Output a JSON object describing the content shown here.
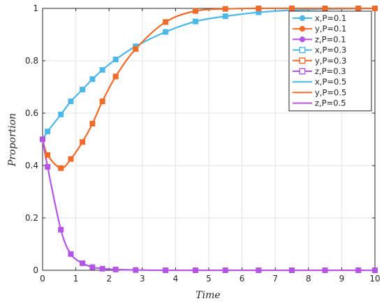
{
  "chart_data": {
    "type": "line",
    "title": "",
    "xlabel": "Time",
    "ylabel": "Proportion",
    "xlim": [
      0,
      10
    ],
    "ylim": [
      0,
      1
    ],
    "x_ticks": [
      "0",
      "1",
      "2",
      "3",
      "4",
      "5",
      "6",
      "7",
      "8",
      "9",
      "10"
    ],
    "y_ticks": [
      "0",
      "0.2",
      "0.4",
      "0.6",
      "0.8",
      "1"
    ],
    "grid": true,
    "legend_position": "top-right",
    "legend": [
      {
        "label": "x,P=0.1",
        "color": "#4db8e8",
        "marker": "circle"
      },
      {
        "label": "y,P=0.1",
        "color": "#f06a2a",
        "marker": "circle"
      },
      {
        "label": "z,P=0.1",
        "color": "#b455e6",
        "marker": "circle"
      },
      {
        "label": "x,P=0.3",
        "color": "#4db8e8",
        "marker": "square-open"
      },
      {
        "label": "y,P=0.3",
        "color": "#f06a2a",
        "marker": "square-open"
      },
      {
        "label": "z,P=0.3",
        "color": "#b455e6",
        "marker": "square-open"
      },
      {
        "label": "x,P=0.5",
        "color": "#4db8e8",
        "marker": "none"
      },
      {
        "label": "y,P=0.5",
        "color": "#f06a2a",
        "marker": "none"
      },
      {
        "label": "z,P=0.5",
        "color": "#b455e6",
        "marker": "none"
      }
    ],
    "series": [
      {
        "color": "#4db8e8",
        "marker": "square-filled",
        "x": [
          0,
          0.15,
          0.55,
          0.85,
          1.2,
          1.5,
          1.8,
          2.2,
          2.8,
          3.7,
          4.6,
          5.5,
          6.5,
          7.5,
          8.5,
          9.5,
          10
        ],
        "y": [
          0.5,
          0.53,
          0.595,
          0.645,
          0.69,
          0.73,
          0.765,
          0.805,
          0.855,
          0.91,
          0.95,
          0.97,
          0.985,
          0.993,
          0.997,
          0.999,
          1.0
        ]
      },
      {
        "color": "#f06a2a",
        "marker": "square-filled",
        "x": [
          0,
          0.15,
          0.55,
          0.85,
          1.2,
          1.5,
          1.8,
          2.2,
          2.8,
          3.7,
          4.6,
          5.5,
          6.5,
          7.5,
          8.5,
          9.5,
          10
        ],
        "y": [
          0.5,
          0.44,
          0.39,
          0.425,
          0.49,
          0.56,
          0.645,
          0.74,
          0.845,
          0.948,
          0.99,
          0.998,
          1.0,
          1.0,
          1.0,
          1.0,
          1.0
        ]
      },
      {
        "color": "#b455e6",
        "marker": "square-filled",
        "x": [
          0,
          0.15,
          0.55,
          0.85,
          1.2,
          1.5,
          1.8,
          2.2,
          2.8,
          3.7,
          4.6,
          5.5,
          6.5,
          7.5,
          8.5,
          9.5,
          10
        ],
        "y": [
          0.5,
          0.395,
          0.155,
          0.062,
          0.027,
          0.012,
          0.006,
          0.003,
          0.001,
          0.0,
          0.0,
          0.0,
          0.0,
          0.0,
          0.0,
          0.0,
          0.0
        ]
      }
    ]
  }
}
